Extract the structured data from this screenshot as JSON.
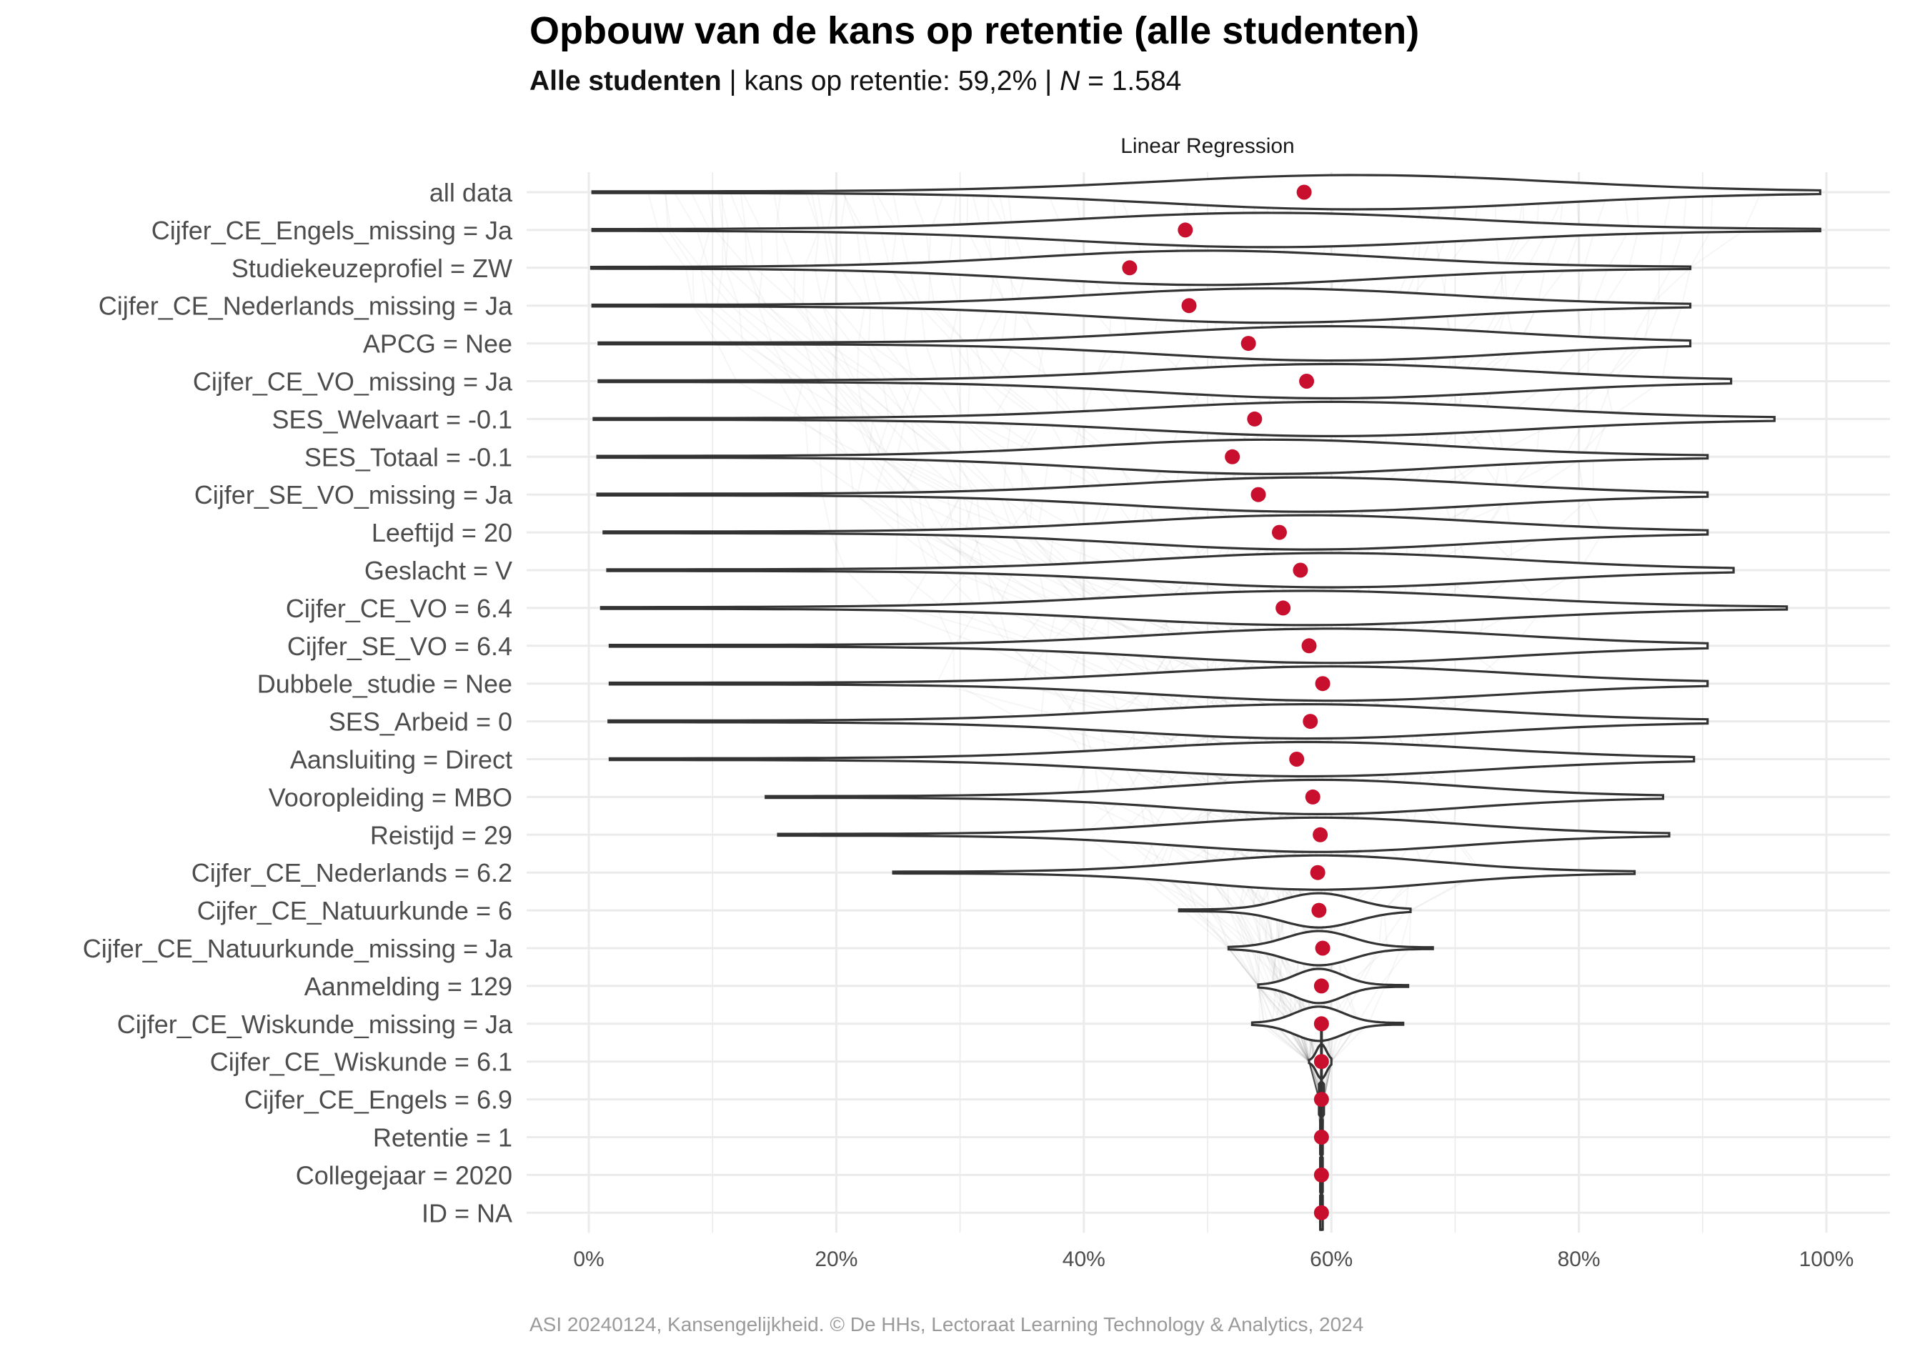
{
  "title": "Opbouw van de kans op retentie (alle studenten)",
  "subtitle": {
    "group": "Alle studenten",
    "sep1": " | kans op retentie: ",
    "rate": "59,2%",
    "sep2": " | ",
    "n_label": "N",
    "n_value": " = 1.584"
  },
  "caption": "ASI 20240124, Kansengelijkheid. © De HHs, Lectoraat Learning Technology & Analytics, 2024",
  "colors": {
    "point": "#C8102E",
    "violin": "#333333",
    "grid": "#ebebeb"
  },
  "chart_data": {
    "type": "violin",
    "facet_label": "Linear Regression",
    "x_ticks": [
      "0%",
      "20%",
      "40%",
      "60%",
      "80%",
      "100%"
    ],
    "xlim": [
      0,
      1
    ],
    "grid": true,
    "rows": [
      {
        "label": "all data",
        "mean": 0.578,
        "min": 0.003,
        "max": 0.995,
        "mode": 0.62
      },
      {
        "label": "Cijfer_CE_Engels_missing = Ja",
        "mean": 0.482,
        "min": 0.003,
        "max": 0.995,
        "mode": 0.55
      },
      {
        "label": "Studiekeuzeprofiel = ZW",
        "mean": 0.437,
        "min": 0.002,
        "max": 0.89,
        "mode": 0.5
      },
      {
        "label": "Cijfer_CE_Nederlands_missing = Ja",
        "mean": 0.485,
        "min": 0.003,
        "max": 0.89,
        "mode": 0.55
      },
      {
        "label": "APCG = Nee",
        "mean": 0.533,
        "min": 0.008,
        "max": 0.89,
        "mode": 0.6
      },
      {
        "label": "Cijfer_CE_VO_missing = Ja",
        "mean": 0.58,
        "min": 0.008,
        "max": 0.923,
        "mode": 0.6
      },
      {
        "label": "SES_Welvaart = -0.1",
        "mean": 0.538,
        "min": 0.004,
        "max": 0.958,
        "mode": 0.6
      },
      {
        "label": "SES_Totaal = -0.1",
        "mean": 0.52,
        "min": 0.007,
        "max": 0.904,
        "mode": 0.55
      },
      {
        "label": "Cijfer_SE_VO_missing = Ja",
        "mean": 0.541,
        "min": 0.007,
        "max": 0.904,
        "mode": 0.58
      },
      {
        "label": "Leeftijd = 20",
        "mean": 0.558,
        "min": 0.012,
        "max": 0.904,
        "mode": 0.58
      },
      {
        "label": "Geslacht = V",
        "mean": 0.575,
        "min": 0.015,
        "max": 0.925,
        "mode": 0.6
      },
      {
        "label": "Cijfer_CE_VO = 6.4",
        "mean": 0.561,
        "min": 0.01,
        "max": 0.968,
        "mode": 0.58
      },
      {
        "label": "Cijfer_SE_VO = 6.4",
        "mean": 0.582,
        "min": 0.017,
        "max": 0.904,
        "mode": 0.6
      },
      {
        "label": "Dubbele_studie = Nee",
        "mean": 0.593,
        "min": 0.017,
        "max": 0.904,
        "mode": 0.6
      },
      {
        "label": "SES_Arbeid = 0",
        "mean": 0.583,
        "min": 0.016,
        "max": 0.904,
        "mode": 0.58
      },
      {
        "label": "Aansluiting = Direct",
        "mean": 0.572,
        "min": 0.017,
        "max": 0.893,
        "mode": 0.58
      },
      {
        "label": "Vooropleiding = MBO",
        "mean": 0.585,
        "min": 0.143,
        "max": 0.868,
        "mode": 0.59
      },
      {
        "label": "Reistijd = 29",
        "mean": 0.591,
        "min": 0.153,
        "max": 0.873,
        "mode": 0.59
      },
      {
        "label": "Cijfer_CE_Nederlands = 6.2",
        "mean": 0.589,
        "min": 0.246,
        "max": 0.845,
        "mode": 0.59
      },
      {
        "label": "Cijfer_CE_Natuurkunde = 6",
        "mean": 0.59,
        "min": 0.477,
        "max": 0.664,
        "mode": 0.59
      },
      {
        "label": "Cijfer_CE_Natuurkunde_missing = Ja",
        "mean": 0.593,
        "min": 0.517,
        "max": 0.682,
        "mode": 0.59
      },
      {
        "label": "Aanmelding = 129",
        "mean": 0.592,
        "min": 0.541,
        "max": 0.662,
        "mode": 0.59
      },
      {
        "label": "Cijfer_CE_Wiskunde_missing = Ja",
        "mean": 0.592,
        "min": 0.536,
        "max": 0.658,
        "mode": 0.59
      },
      {
        "label": "Cijfer_CE_Wiskunde = 6.1",
        "mean": 0.592,
        "min": 0.582,
        "max": 0.6,
        "mode": 0.592
      },
      {
        "label": "Cijfer_CE_Engels = 6.9",
        "mean": 0.592,
        "min": 0.59,
        "max": 0.594,
        "mode": 0.592
      },
      {
        "label": "Retentie = 1",
        "mean": 0.592,
        "min": 0.591,
        "max": 0.593,
        "mode": 0.592
      },
      {
        "label": "Collegejaar = 2020",
        "mean": 0.592,
        "min": 0.591,
        "max": 0.593,
        "mode": 0.592
      },
      {
        "label": "ID = NA",
        "mean": 0.592,
        "min": 0.591,
        "max": 0.593,
        "mode": 0.592
      }
    ]
  }
}
